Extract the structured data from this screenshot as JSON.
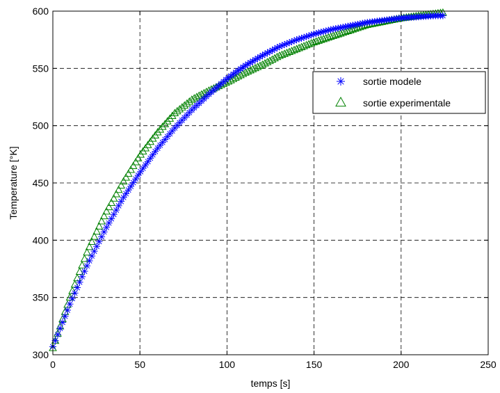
{
  "chart_data": {
    "type": "scatter",
    "xlabel": "temps [s]",
    "ylabel": "Temperature [°K]",
    "xlim": [
      0,
      250
    ],
    "ylim": [
      300,
      600
    ],
    "xticks": [
      0,
      50,
      100,
      150,
      200,
      250
    ],
    "yticks": [
      300,
      350,
      400,
      450,
      500,
      550,
      600
    ],
    "grid": true,
    "legend_position": "top-right",
    "series": [
      {
        "name": "sortie modele",
        "marker": "asterisk",
        "color": "#0000ff",
        "x": [
          0,
          10,
          20,
          30,
          40,
          50,
          60,
          70,
          80,
          90,
          100,
          110,
          120,
          130,
          140,
          150,
          160,
          170,
          180,
          190,
          200,
          210,
          220,
          225
        ],
        "y": [
          307,
          345,
          379,
          409,
          436,
          459,
          480,
          498,
          514,
          528,
          541,
          552,
          561,
          569,
          575,
          580,
          584,
          587,
          590,
          592,
          594,
          595,
          596,
          596
        ]
      },
      {
        "name": "sortie experimentale",
        "marker": "triangle",
        "color": "#008000",
        "x": [
          0,
          10,
          20,
          30,
          40,
          50,
          60,
          70,
          80,
          90,
          100,
          110,
          120,
          130,
          140,
          150,
          160,
          170,
          180,
          190,
          200,
          210,
          220,
          225
        ],
        "y": [
          306,
          351,
          391,
          423,
          450,
          474,
          494,
          511,
          523,
          531,
          538,
          546,
          553,
          561,
          567,
          573,
          578,
          583,
          588,
          591,
          594,
          596,
          598,
          599
        ]
      }
    ]
  }
}
